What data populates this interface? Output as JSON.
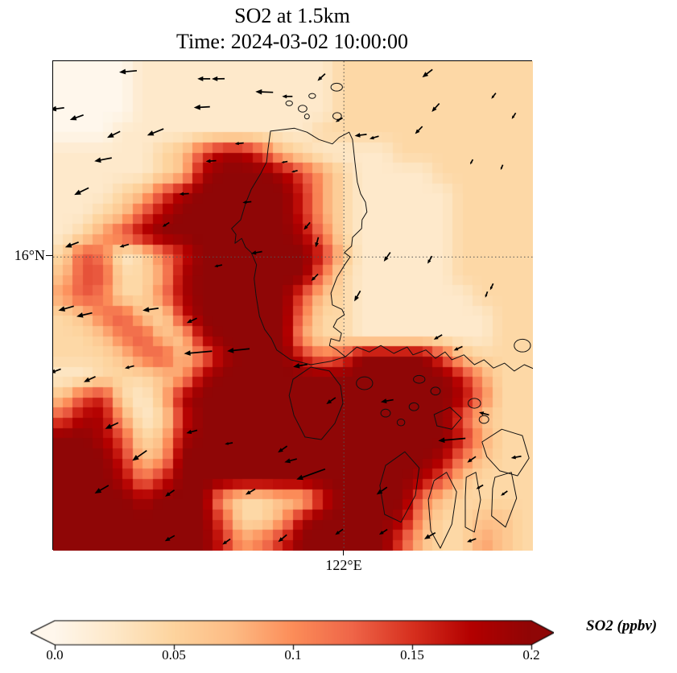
{
  "title": "SO2 at 1.5km",
  "subtitle": "Time: 2024-03-02 10:00:00",
  "axes": {
    "y_tick_label": "16°N",
    "x_tick_label": "122°E",
    "y_gridline_pct": 40.0,
    "x_gridline_pct": 60.6,
    "gridline_style": "dotted",
    "gridline_color": "#555555"
  },
  "colorbar": {
    "label": "SO2 (ppbv)",
    "ticks": [
      "0.0",
      "0.05",
      "0.1",
      "0.15",
      "0.2"
    ],
    "tick_values": [
      0,
      0.05,
      0.1,
      0.15,
      0.2
    ],
    "vmin": 0.0,
    "vmax": 0.2,
    "extend": "both",
    "orientation": "horizontal"
  },
  "chart_data": {
    "type": "heatmap",
    "title": "SO2 at 1.5km",
    "subtitle": "Time: 2024-03-02 10:00:00",
    "region": "Philippines / Luzon area, graticule at 16N and 122E",
    "units": "ppbv",
    "colormap_stops": [
      [
        0.0,
        "#fff7ec"
      ],
      [
        0.125,
        "#fee8c8"
      ],
      [
        0.25,
        "#fdd49e"
      ],
      [
        0.375,
        "#fdbb84"
      ],
      [
        0.5,
        "#fc8d59"
      ],
      [
        0.625,
        "#ef6548"
      ],
      [
        0.75,
        "#d7301f"
      ],
      [
        0.875,
        "#b30000"
      ],
      [
        1.0,
        "#8f0606"
      ]
    ],
    "grid_encoding": "24x24 rows, top to bottom; each char digit d -> SO2 value = d * 0.0225 ppbv (9 = saturated, above colorbar max 0.2)",
    "value_scale": 0.0225,
    "grid": [
      "000011111111112222222222",
      "000011111111112222222222",
      "000011111111112222222222",
      "000111111111122222222222",
      "111112368863211112222222",
      "111112389998642111122222",
      "111236899999742111112222",
      "112368999999742111112222",
      "124689999999852111112222",
      "265125799999973111112222",
      "366224899999952111112222",
      "465225899999632111111222",
      "235632799999522111111122",
      "223563389999422111111122",
      "222356358999756999963222",
      "112223489999999999997422",
      "367213899999999999998522",
      "688412799999999999996322",
      "998623899999999999997422",
      "999734999999999999985322",
      "999857999999999999863222",
      "999989994223379999532222",
      "999999996224899998422332",
      "999999997457999996322432"
    ],
    "quiver": {
      "description": "wind arrows; [x_pct, y_pct, direction_deg (math convention, 0=east, 90=north), length_px]",
      "arrows": [
        [
          15.6,
          2.1,
          185,
          22
        ],
        [
          31.4,
          3.6,
          180,
          16
        ],
        [
          34.4,
          3.6,
          181,
          16
        ],
        [
          44.0,
          6.3,
          178,
          22
        ],
        [
          48.8,
          7.2,
          180,
          13
        ],
        [
          55.9,
          3.3,
          223,
          13
        ],
        [
          78.0,
          2.5,
          218,
          16
        ],
        [
          91.8,
          7.1,
          232,
          9
        ],
        [
          96.0,
          11.2,
          237,
          9
        ],
        [
          0.8,
          9.7,
          187,
          18
        ],
        [
          4.9,
          11.5,
          200,
          18
        ],
        [
          12.6,
          15.0,
          206,
          18
        ],
        [
          21.3,
          14.5,
          202,
          22
        ],
        [
          31.0,
          9.4,
          183,
          20
        ],
        [
          59.6,
          12.0,
          210,
          10
        ],
        [
          79.7,
          9.5,
          228,
          14
        ],
        [
          76.2,
          14.1,
          226,
          13
        ],
        [
          10.4,
          20.1,
          191,
          22
        ],
        [
          32.9,
          20.4,
          184,
          13
        ],
        [
          38.8,
          16.8,
          186,
          11
        ],
        [
          48.2,
          20.6,
          190,
          8
        ],
        [
          87.2,
          20.6,
          242,
          7
        ],
        [
          93.5,
          21.7,
          247,
          7
        ],
        [
          5.9,
          26.6,
          206,
          20
        ],
        [
          27.3,
          27.1,
          183,
          12
        ],
        [
          40.4,
          28.8,
          186,
          11
        ],
        [
          50.3,
          22.5,
          195,
          8
        ],
        [
          64.1,
          15.1,
          187,
          15
        ],
        [
          66.9,
          15.6,
          196,
          12
        ],
        [
          3.9,
          37.5,
          201,
          18
        ],
        [
          14.8,
          37.7,
          196,
          12
        ],
        [
          34.4,
          41.8,
          192,
          10
        ],
        [
          23.5,
          33.4,
          212,
          10
        ],
        [
          63.4,
          48.0,
          240,
          15
        ],
        [
          69.6,
          40.0,
          235,
          14
        ],
        [
          78.5,
          40.6,
          240,
          11
        ],
        [
          91.4,
          46.1,
          245,
          9
        ],
        [
          90.3,
          47.7,
          250,
          8
        ],
        [
          55.0,
          37.0,
          255,
          13
        ],
        [
          52.9,
          33.7,
          230,
          12
        ],
        [
          42.4,
          39.1,
          190,
          14
        ],
        [
          2.7,
          50.5,
          196,
          20
        ],
        [
          6.5,
          51.8,
          193,
          20
        ],
        [
          20.3,
          50.7,
          188,
          20
        ],
        [
          28.9,
          53.0,
          205,
          14
        ],
        [
          54.5,
          44.2,
          225,
          12
        ],
        [
          80.2,
          56.4,
          210,
          12
        ],
        [
          84.4,
          58.7,
          205,
          12
        ],
        [
          30.2,
          59.5,
          185,
          35
        ],
        [
          38.6,
          59.0,
          186,
          28
        ],
        [
          51.5,
          62.2,
          190,
          18
        ],
        [
          57.9,
          69.4,
          215,
          14
        ],
        [
          69.6,
          69.4,
          190,
          16
        ],
        [
          89.8,
          72.0,
          165,
          13
        ],
        [
          87.2,
          81.4,
          215,
          13
        ],
        [
          96.5,
          80.9,
          190,
          13
        ],
        [
          0.5,
          63.3,
          200,
          14
        ],
        [
          7.6,
          65.0,
          205,
          16
        ],
        [
          15.9,
          62.5,
          195,
          12
        ],
        [
          12.2,
          74.5,
          205,
          18
        ],
        [
          18.0,
          80.6,
          215,
          22
        ],
        [
          28.9,
          75.7,
          195,
          14
        ],
        [
          36.6,
          78.1,
          190,
          10
        ],
        [
          47.8,
          79.3,
          215,
          14
        ],
        [
          49.5,
          81.6,
          195,
          16
        ],
        [
          53.7,
          84.4,
          200,
          38
        ],
        [
          83.1,
          77.3,
          185,
          34
        ],
        [
          10.1,
          87.5,
          210,
          20
        ],
        [
          24.3,
          88.3,
          215,
          14
        ],
        [
          41.1,
          88.0,
          210,
          14
        ],
        [
          68.5,
          87.8,
          215,
          16
        ],
        [
          88.9,
          87.0,
          210,
          10
        ],
        [
          94.0,
          88.3,
          215,
          10
        ],
        [
          24.3,
          97.5,
          210,
          14
        ],
        [
          36.1,
          98.2,
          215,
          12
        ],
        [
          47.8,
          97.5,
          220,
          14
        ],
        [
          59.6,
          96.2,
          215,
          12
        ],
        [
          68.8,
          96.2,
          212,
          12
        ],
        [
          78.5,
          97.0,
          210,
          16
        ],
        [
          87.2,
          97.9,
          200,
          12
        ]
      ]
    },
    "coastlines": {
      "closed_polygons": [
        [
          [
            45.3,
            14.3
          ],
          [
            50.3,
            13.7
          ],
          [
            52.9,
            14.5
          ],
          [
            55.4,
            16.0
          ],
          [
            58.2,
            16.9
          ],
          [
            59.6,
            15.6
          ],
          [
            61.7,
            14.5
          ],
          [
            62.4,
            16.0
          ],
          [
            62.9,
            20.6
          ],
          [
            63.4,
            24.7
          ],
          [
            64.1,
            27.1
          ],
          [
            65.1,
            28.8
          ],
          [
            65.4,
            30.8
          ],
          [
            64.4,
            32.4
          ],
          [
            64.3,
            34.2
          ],
          [
            62.4,
            36.0
          ],
          [
            62.2,
            37.8
          ],
          [
            60.7,
            39.1
          ],
          [
            61.9,
            40.0
          ],
          [
            60.9,
            41.4
          ],
          [
            59.2,
            44.1
          ],
          [
            57.9,
            47.4
          ],
          [
            58.2,
            49.8
          ],
          [
            60.2,
            50.7
          ],
          [
            60.7,
            51.8
          ],
          [
            59.2,
            52.8
          ],
          [
            58.4,
            54.3
          ],
          [
            60.1,
            55.6
          ],
          [
            59.7,
            57.2
          ],
          [
            57.9,
            56.7
          ],
          [
            57.6,
            58.1
          ],
          [
            59.2,
            59.0
          ],
          [
            60.9,
            60.4
          ],
          [
            57.9,
            61.3
          ],
          [
            53.7,
            62.0
          ],
          [
            49.5,
            61.0
          ],
          [
            46.6,
            59.0
          ],
          [
            45.5,
            56.7
          ],
          [
            44.1,
            54.8
          ],
          [
            43.0,
            52.1
          ],
          [
            42.3,
            47.9
          ],
          [
            41.9,
            44.4
          ],
          [
            42.4,
            41.6
          ],
          [
            41.3,
            39.1
          ],
          [
            40.1,
            38.0
          ],
          [
            39.3,
            36.2
          ],
          [
            37.9,
            37.2
          ],
          [
            38.1,
            35.4
          ],
          [
            37.2,
            34.2
          ],
          [
            39.1,
            32.4
          ],
          [
            40.1,
            29.1
          ],
          [
            41.3,
            26.2
          ],
          [
            43.3,
            22.9
          ],
          [
            44.5,
            20.6
          ],
          [
            44.8,
            17.9
          ]
        ],
        [
          [
            50.0,
            65.0
          ],
          [
            53.7,
            62.5
          ],
          [
            57.6,
            63.3
          ],
          [
            59.9,
            66.3
          ],
          [
            60.4,
            69.9
          ],
          [
            58.7,
            74.0
          ],
          [
            55.9,
            77.3
          ],
          [
            52.5,
            76.8
          ],
          [
            50.2,
            72.4
          ],
          [
            49.2,
            68.3
          ]
        ],
        [
          [
            79.4,
            72.2
          ],
          [
            82.7,
            70.7
          ],
          [
            85.1,
            72.9
          ],
          [
            83.1,
            75.2
          ],
          [
            80.0,
            74.5
          ]
        ],
        [
          [
            69.3,
            82.6
          ],
          [
            73.3,
            79.8
          ],
          [
            76.3,
            83.1
          ],
          [
            75.5,
            88.7
          ],
          [
            72.5,
            94.2
          ],
          [
            69.1,
            92.6
          ],
          [
            68.1,
            86.7
          ]
        ],
        [
          [
            79.4,
            85.7
          ],
          [
            82.0,
            84.0
          ],
          [
            84.1,
            88.0
          ],
          [
            83.1,
            94.6
          ],
          [
            80.7,
            99.5
          ],
          [
            78.7,
            95.9
          ],
          [
            78.2,
            89.6
          ]
        ],
        [
          [
            86.1,
            85.0
          ],
          [
            88.1,
            84.0
          ],
          [
            89.1,
            89.6
          ],
          [
            87.8,
            96.2
          ],
          [
            85.9,
            95.2
          ],
          [
            85.9,
            89.0
          ]
        ],
        [
          [
            89.4,
            77.8
          ],
          [
            93.5,
            75.2
          ],
          [
            97.8,
            76.5
          ],
          [
            99.2,
            81.1
          ],
          [
            96.8,
            84.7
          ],
          [
            93.1,
            83.7
          ],
          [
            90.4,
            80.8
          ]
        ],
        [
          [
            92.1,
            85.0
          ],
          [
            95.5,
            84.0
          ],
          [
            96.6,
            89.3
          ],
          [
            94.3,
            95.2
          ],
          [
            91.4,
            92.9
          ],
          [
            91.6,
            87.3
          ]
        ]
      ],
      "open_polylines": [
        [
          [
            60.9,
            60.4
          ],
          [
            63.3,
            58.4
          ],
          [
            65.9,
            59.4
          ],
          [
            68.3,
            58.1
          ],
          [
            71.0,
            59.7
          ],
          [
            73.8,
            58.4
          ],
          [
            75.0,
            60.0
          ],
          [
            77.7,
            59.0
          ],
          [
            79.7,
            60.7
          ],
          [
            81.7,
            59.4
          ],
          [
            83.1,
            61.0
          ],
          [
            85.6,
            60.0
          ],
          [
            87.8,
            62.0
          ],
          [
            89.8,
            61.0
          ],
          [
            91.8,
            62.7
          ],
          [
            94.1,
            61.7
          ],
          [
            96.1,
            63.3
          ],
          [
            98.2,
            62.0
          ],
          [
            100.5,
            63.0
          ]
        ]
      ],
      "ellipses": [
        [
          52.0,
          9.7,
          0.9,
          0.7
        ],
        [
          54.0,
          7.1,
          0.7,
          0.5
        ],
        [
          59.1,
          5.3,
          1.2,
          0.8
        ],
        [
          59.2,
          11.2,
          0.9,
          0.7
        ],
        [
          52.9,
          11.3,
          0.5,
          0.5
        ],
        [
          49.2,
          8.6,
          0.7,
          0.5
        ],
        [
          64.9,
          65.8,
          1.7,
          1.3
        ],
        [
          69.3,
          71.9,
          1.0,
          0.8
        ],
        [
          72.5,
          73.8,
          0.8,
          0.7
        ],
        [
          75.2,
          70.6,
          1.0,
          0.8
        ],
        [
          97.8,
          58.1,
          1.7,
          1.3
        ],
        [
          76.3,
          65.0,
          1.2,
          0.8
        ],
        [
          79.7,
          67.4,
          1.0,
          0.8
        ],
        [
          87.8,
          69.9,
          1.3,
          1.0
        ],
        [
          89.8,
          73.2,
          1.0,
          0.8
        ]
      ]
    }
  }
}
